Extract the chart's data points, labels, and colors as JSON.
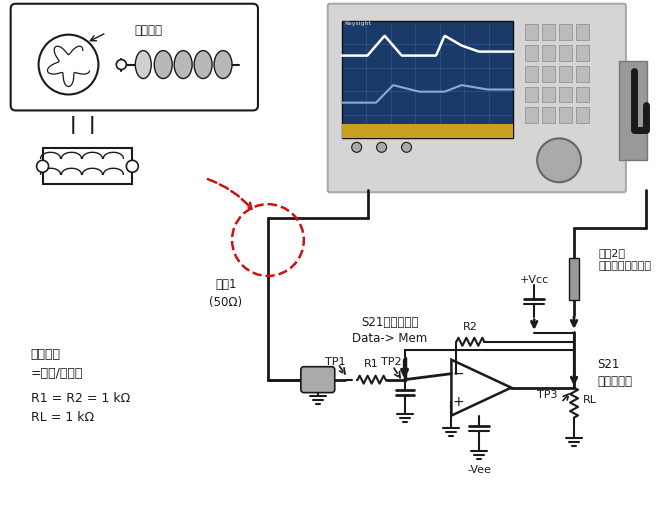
{
  "bg_color": "#ffffff",
  "fig_width": 6.66,
  "fig_height": 5.26,
  "dpi": 100,
  "black": "#1a1a1a",
  "red": "#cc1111",
  "gray": "#888888",
  "light_gray": "#c8c8c8",
  "mid_gray": "#aaaaaa",
  "dark_gray": "#666666",
  "blue_screen": "#1a3a6a",
  "gold": "#c8a020",
  "analyzer_body": "#d8d8d8",
  "labels": {
    "coax": "同轴电缆",
    "port1": "端口1\n(50Ω)",
    "port2": "端口2，\n连接高阻有源探头",
    "s21_step1": "S21（第一步）\nData-> Mem",
    "s21_step2": "S21\n（第二步）",
    "open_loop_gain": "开环增益\n=数据/存储器",
    "resistor_vals": "R1 = R2 = 1 kΩ\nRL = 1 kΩ",
    "tp1": "TP1",
    "tp2": "TP2",
    "tp3": "TP3",
    "r1": "R1",
    "r2": "R2",
    "rl": "RL",
    "vcc": "+Vcc",
    "vee": "-Vee"
  }
}
